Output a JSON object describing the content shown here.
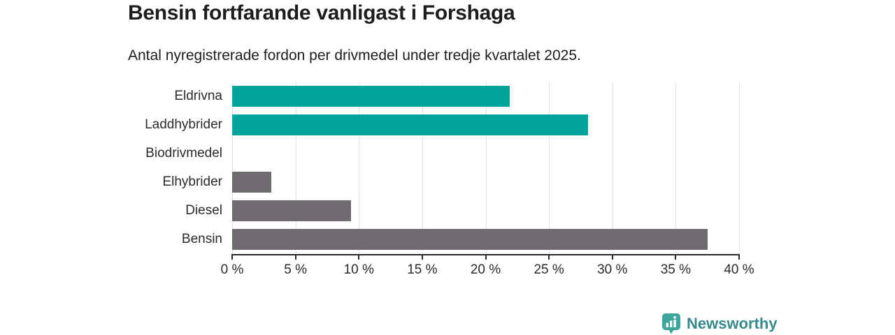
{
  "chart_data": {
    "type": "bar",
    "orientation": "horizontal",
    "title": "Bensin fortfarande vanligast i Forshaga",
    "subtitle": "Antal nyregistrerade fordon per drivmedel under tredje kvartalet 2025.",
    "categories": [
      "Eldrivna",
      "Laddhybrider",
      "Biodrivmedel",
      "Elhybrider",
      "Diesel",
      "Bensin"
    ],
    "values": [
      21.9,
      28.1,
      0,
      3.1,
      9.4,
      37.5
    ],
    "unit": "%",
    "bar_colors": [
      "#00a49a",
      "#00a49a",
      "#6e6a70",
      "#6e6a70",
      "#6e6a70",
      "#6e6a70"
    ],
    "xlim": [
      0,
      40
    ],
    "x_ticks": [
      0,
      5,
      10,
      15,
      20,
      25,
      30,
      35,
      40
    ],
    "x_tick_labels": [
      "0 %",
      "5 %",
      "10 %",
      "15 %",
      "20 %",
      "25 %",
      "30 %",
      "35 %",
      "40 %"
    ],
    "xlabel": "",
    "ylabel": "",
    "grid": true,
    "legend": "none"
  },
  "colors": {
    "teal_bar": "#00a49a",
    "gray_bar": "#6e6a70",
    "gridline": "#e2e2e2",
    "axis": "#2a2a2a",
    "text": "#1d1d1d"
  },
  "branding": {
    "name": "Newsworthy",
    "icon": "newsworthy-speech-bubble-bar-chart-icon",
    "icon_color": "#3da59c",
    "text_color": "#38898c"
  }
}
